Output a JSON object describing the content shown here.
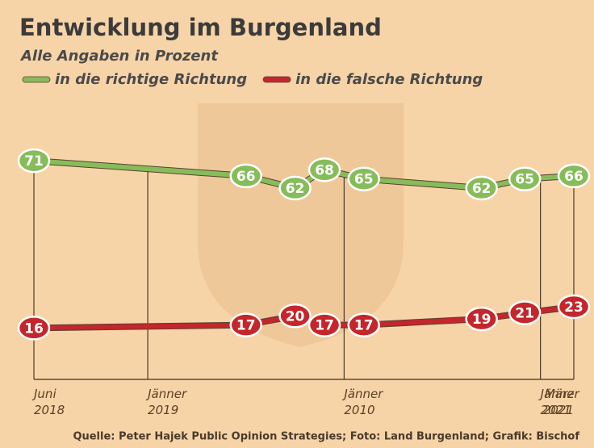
{
  "chart_data": {
    "type": "line",
    "title": "Entwicklung im Burgenland",
    "subtitle": "Alle Angaben in Prozent",
    "source": "Quelle: Peter Hajek Public Opinion Strategies; Foto: Land Burgenland; Grafik: Bischof",
    "x": [
      2018.42,
      2019.5,
      2019.75,
      2019.9,
      2020.1,
      2020.7,
      2020.92,
      2021.17
    ],
    "xlim": [
      2018.42,
      2021.17
    ],
    "xticks": [
      {
        "value": 2018.42,
        "label": "Juni 2018"
      },
      {
        "value": 2019.0,
        "label": "Jänner 2019"
      },
      {
        "value": 2020.0,
        "label": "Jänner 2010"
      },
      {
        "value": 2021.0,
        "label": "Jänner 2021"
      },
      {
        "value": 2021.17,
        "label": "März 2021"
      }
    ],
    "ylim": [
      10,
      75
    ],
    "series": [
      {
        "name": "in die richtige Richtung",
        "color": "#86bc5a",
        "values": [
          71,
          66,
          62,
          68,
          65,
          62,
          65,
          66
        ]
      },
      {
        "name": "in die falsche Richtung",
        "color": "#c4262b",
        "values": [
          16,
          17,
          20,
          17,
          17,
          19,
          21,
          23
        ]
      }
    ]
  }
}
